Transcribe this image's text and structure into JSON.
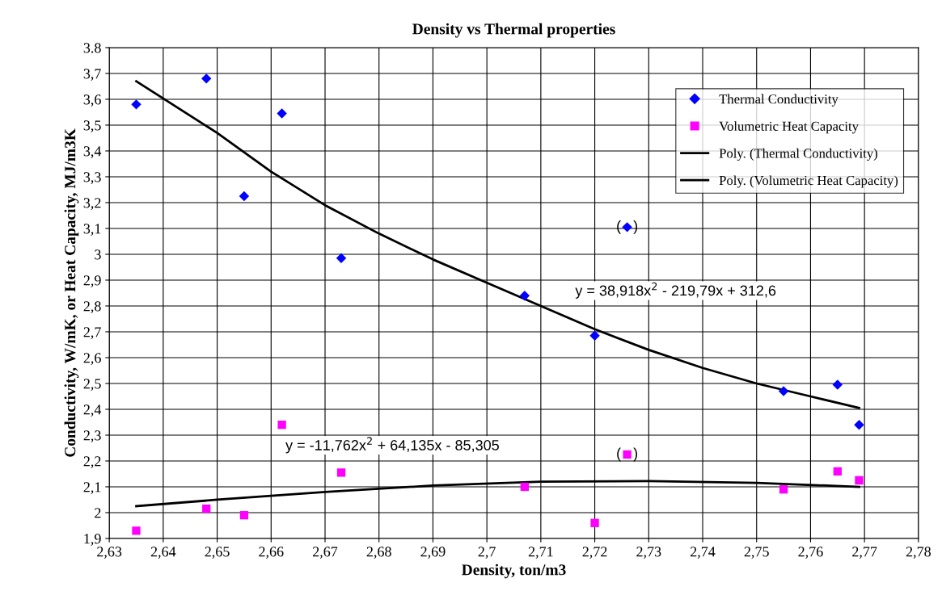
{
  "chart_data": {
    "type": "scatter",
    "title": "Density vs Thermal properties",
    "xlabel": "Density, ton/m3",
    "ylabel": "Conductivity, W/mK, or Heat Capacity, MJ/m3K",
    "xlim": [
      2.63,
      2.78
    ],
    "xticks": [
      {
        "value": 2.63,
        "label": "2,63"
      },
      {
        "value": 2.64,
        "label": "2,64"
      },
      {
        "value": 2.65,
        "label": "2,65"
      },
      {
        "value": 2.66,
        "label": "2,66"
      },
      {
        "value": 2.67,
        "label": "2,67"
      },
      {
        "value": 2.68,
        "label": "2,68"
      },
      {
        "value": 2.69,
        "label": "2,69"
      },
      {
        "value": 2.7,
        "label": "2,7"
      },
      {
        "value": 2.71,
        "label": "2,71"
      },
      {
        "value": 2.72,
        "label": "2,72"
      },
      {
        "value": 2.73,
        "label": "2,73"
      },
      {
        "value": 2.74,
        "label": "2,74"
      },
      {
        "value": 2.75,
        "label": "2,75"
      },
      {
        "value": 2.76,
        "label": "2,76"
      },
      {
        "value": 2.77,
        "label": "2,77"
      },
      {
        "value": 2.78,
        "label": "2,78"
      }
    ],
    "ylim": [
      1.9,
      3.8
    ],
    "yticks": [
      {
        "value": 1.9,
        "label": "1,9"
      },
      2,
      {
        "value": 2.1,
        "label": "2,1"
      },
      {
        "value": 2.2,
        "label": "2,2"
      },
      {
        "value": 2.3,
        "label": "2,3"
      },
      {
        "value": 2.4,
        "label": "2,4"
      },
      {
        "value": 2.5,
        "label": "2,5"
      },
      {
        "value": 2.6,
        "label": "2,6"
      },
      {
        "value": 2.7,
        "label": "2,7"
      },
      {
        "value": 2.8,
        "label": "2,8"
      },
      {
        "value": 2.9,
        "label": "2,9"
      },
      3,
      {
        "value": 3.1,
        "label": "3,1"
      },
      {
        "value": 3.2,
        "label": "3,2"
      },
      {
        "value": 3.3,
        "label": "3,3"
      },
      {
        "value": 3.4,
        "label": "3,4"
      },
      {
        "value": 3.5,
        "label": "3,5"
      },
      {
        "value": 3.6,
        "label": "3,6"
      },
      {
        "value": 3.7,
        "label": "3,7"
      },
      3.8
    ],
    "grid": true,
    "legend": "top right",
    "series": [
      {
        "name": "Thermal Conductivity",
        "marker": "diamond",
        "color": "#0000ff",
        "x": [
          2.635,
          2.648,
          2.655,
          2.662,
          2.673,
          2.707,
          2.72,
          2.726,
          2.755,
          2.765,
          2.769
        ],
        "values": [
          3.58,
          3.68,
          3.225,
          3.545,
          2.985,
          2.84,
          2.685,
          3.105,
          2.47,
          2.495,
          2.34
        ]
      },
      {
        "name": "Volumetric Heat Capacity",
        "marker": "square",
        "color": "#ff00ff",
        "x": [
          2.635,
          2.648,
          2.655,
          2.662,
          2.673,
          2.707,
          2.72,
          2.726,
          2.755,
          2.765,
          2.769
        ],
        "values": [
          1.93,
          2.015,
          1.99,
          2.34,
          2.155,
          2.1,
          1.96,
          2.225,
          2.09,
          2.16,
          2.125
        ]
      },
      {
        "name": "Poly. (Thermal Conductivity)",
        "type": "line",
        "marker": "none",
        "line_style": "solid",
        "color": "#000000",
        "x": [
          2.635,
          2.65,
          2.66,
          2.67,
          2.68,
          2.69,
          2.7,
          2.71,
          2.72,
          2.73,
          2.74,
          2.75,
          2.76,
          2.769
        ],
        "values": [
          3.67,
          3.47,
          3.32,
          3.19,
          3.08,
          2.98,
          2.89,
          2.8,
          2.71,
          2.63,
          2.56,
          2.5,
          2.45,
          2.405
        ]
      },
      {
        "name": "Poly. (Volumetric Heat Capacity)",
        "type": "line",
        "marker": "none",
        "line_style": "solid",
        "color": "#000000",
        "x": [
          2.635,
          2.65,
          2.67,
          2.69,
          2.71,
          2.73,
          2.75,
          2.769
        ],
        "values": [
          2.025,
          2.05,
          2.08,
          2.105,
          2.12,
          2.122,
          2.115,
          2.1
        ]
      }
    ],
    "annotations": [
      "y = 38,918x$^{2}$ - 219,79x + 312,6",
      "y = -11,762x$^{2}$ + 64,135x - 85,305",
      {
        "text": "(   )",
        "x": 2.726,
        "y": 3.105
      },
      {
        "text": "(   )",
        "x": 2.726,
        "y": 2.225
      }
    ]
  }
}
